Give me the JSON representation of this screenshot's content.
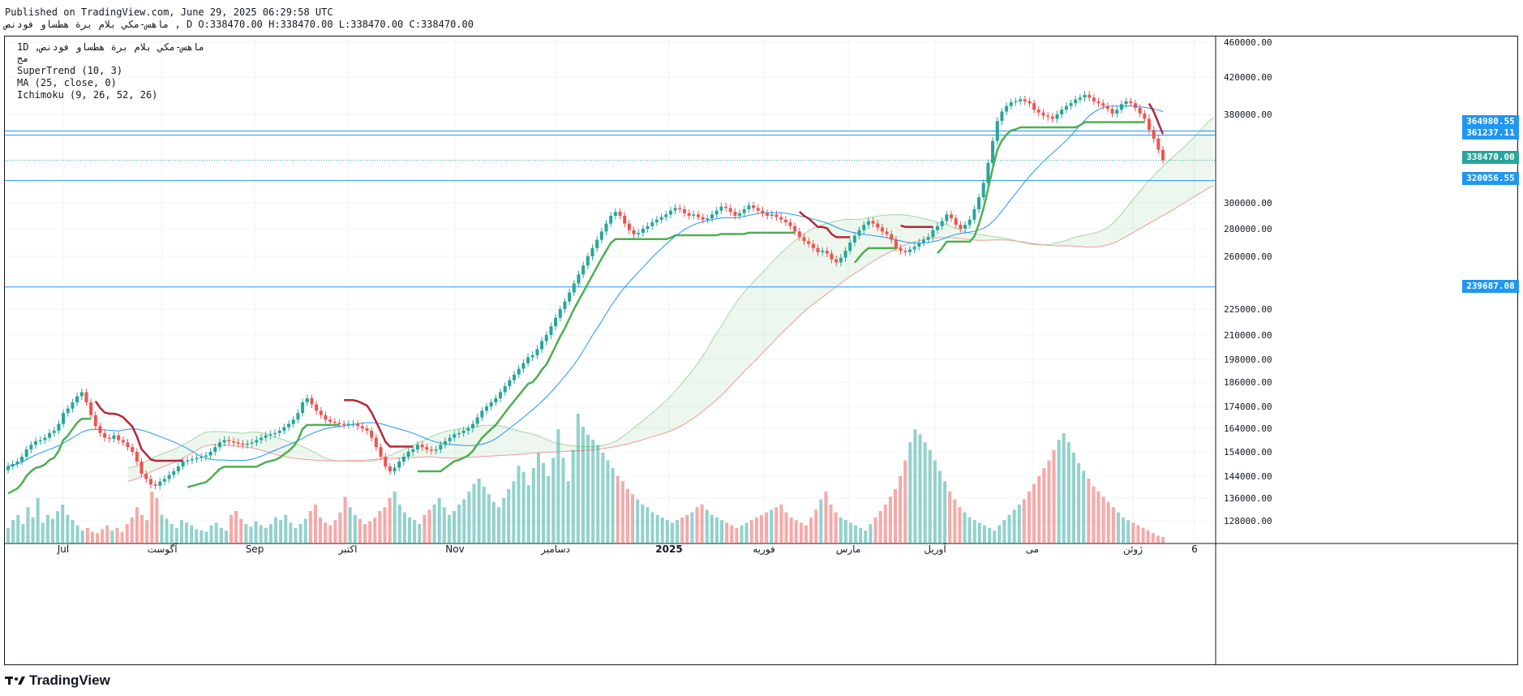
{
  "header": {
    "published": "Published on TradingView.com, June 29, 2025 06:29:58 UTC",
    "symbol_line": "ماهس-مكي بلام برة هطساو فودنص , D O:338470.00 H:338470.00 L:338470.00 C:338470.00"
  },
  "legend": {
    "symbol": "1D ,ماهس-مكي بلام برة هطساو فودنص",
    "exchange": "مج",
    "supertrend": "SuperTrend (10, 3)",
    "ma": "MA (25, close, 0)",
    "ichimoku": "Ichimoku (9, 26, 52, 26)"
  },
  "badges": [
    {
      "label": "364980.55",
      "color": "#2196f3"
    },
    {
      "label": "361237.11",
      "color": "#2196f3"
    },
    {
      "label": "338470.00",
      "color": "#26a69a"
    },
    {
      "label": "320056.55",
      "color": "#2196f3"
    },
    {
      "label": "239687.08",
      "color": "#2196f3"
    }
  ],
  "footer": {
    "brand": "TradingView"
  },
  "chart_data": {
    "type": "candlestick",
    "title": "ماهس-مكي بلام برة هطساو فودنص 1D",
    "y_ticks": [
      "460000.00",
      "420000.00",
      "380000.00",
      "300000.00",
      "280000.00",
      "260000.00",
      "225000.00",
      "210000.00",
      "198000.00",
      "186000.00",
      "174000.00",
      "164000.00",
      "154000.00",
      "144000.00",
      "136000.00",
      "128000.00"
    ],
    "x_ticks": [
      "Jul",
      "آگوست",
      "Sep",
      "اکتبر",
      "Nov",
      "دسامبر",
      "2025",
      "فوریه",
      "مارس",
      "آوریل",
      "می",
      "ژوئن",
      "6"
    ],
    "horizontal_levels": [
      364980.55,
      361237.11,
      338470.0,
      320056.55,
      239687.08
    ],
    "last_close": 338470.0,
    "ohlc_last": {
      "open": 338470.0,
      "high": 338470.0,
      "low": 338470.0,
      "close": 338470.0
    },
    "close_series": [
      148000,
      149000,
      150000,
      152000,
      155000,
      157000,
      158500,
      159000,
      160000,
      162000,
      163000,
      166000,
      171000,
      173000,
      176000,
      179000,
      181000,
      176000,
      170000,
      165000,
      162000,
      160000,
      159500,
      161000,
      159000,
      158000,
      156000,
      154000,
      150000,
      145000,
      143000,
      141000,
      140500,
      142000,
      143000,
      144500,
      146000,
      148000,
      150000,
      150500,
      151000,
      151500,
      152000,
      152500,
      154000,
      156000,
      158000,
      159000,
      158500,
      158000,
      157500,
      157000,
      157500,
      158000,
      159000,
      160000,
      161000,
      161500,
      162000,
      163000,
      164500,
      166000,
      168000,
      171000,
      176000,
      178000,
      175000,
      172000,
      170000,
      168000,
      167000,
      166500,
      166000,
      165500,
      166000,
      166000,
      165000,
      164000,
      163000,
      160000,
      156000,
      152000,
      148000,
      146000,
      147500,
      150000,
      152000,
      154000,
      155000,
      157000,
      156000,
      155000,
      154500,
      155000,
      157000,
      158500,
      160000,
      161500,
      162000,
      163000,
      164000,
      166000,
      169000,
      172000,
      174000,
      176000,
      178000,
      181000,
      184000,
      187000,
      190000,
      193000,
      196000,
      199000,
      200000,
      203000,
      207000,
      210000,
      215000,
      220000,
      225000,
      230000,
      236000,
      242000,
      248000,
      254000,
      260000,
      266000,
      272000,
      278000,
      284000,
      290000,
      293000,
      290000,
      284000,
      279000,
      276000,
      277000,
      280000,
      282000,
      285000,
      287000,
      289000,
      291000,
      294000,
      296000,
      295000,
      292000,
      290000,
      291000,
      289000,
      287000,
      288000,
      291000,
      294000,
      297000,
      296000,
      293000,
      290000,
      292000,
      295000,
      298000,
      296000,
      294000,
      292000,
      290000,
      291000,
      289000,
      287000,
      285000,
      282000,
      278000,
      274000,
      271000,
      269000,
      266000,
      263000,
      264000,
      262000,
      258000,
      256000,
      259000,
      264000,
      270000,
      275000,
      279000,
      283000,
      286000,
      284000,
      281000,
      278000,
      276000,
      272000,
      266000,
      264000,
      263000,
      265000,
      267000,
      270000,
      272000,
      274000,
      279000,
      282000,
      286000,
      291000,
      288000,
      283000,
      280000,
      283000,
      287000,
      295000,
      305000,
      318000,
      336000,
      356000,
      374000,
      383000,
      389000,
      393000,
      394000,
      396000,
      394000,
      392000,
      385000,
      382000,
      379000,
      378000,
      376000,
      380000,
      385000,
      389000,
      392000,
      396000,
      398000,
      401000,
      398000,
      394000,
      392000,
      389000,
      386000,
      381000,
      385000,
      391000,
      394000,
      392000,
      387000,
      381000,
      376000,
      366000,
      358000,
      348000,
      338470
    ],
    "volume_relative": [
      12,
      18,
      22,
      15,
      28,
      20,
      35,
      16,
      22,
      19,
      25,
      30,
      22,
      18,
      14,
      10,
      12,
      9,
      8,
      11,
      14,
      10,
      12,
      9,
      15,
      20,
      28,
      22,
      18,
      40,
      35,
      22,
      19,
      15,
      12,
      18,
      16,
      14,
      11,
      10,
      9,
      14,
      16,
      12,
      10,
      22,
      25,
      19,
      15,
      13,
      17,
      14,
      12,
      15,
      20,
      18,
      22,
      16,
      12,
      15,
      19,
      25,
      30,
      20,
      16,
      14,
      18,
      24,
      36,
      28,
      22,
      19,
      15,
      17,
      20,
      25,
      28,
      35,
      40,
      30,
      24,
      20,
      18,
      15,
      22,
      26,
      30,
      35,
      28,
      22,
      25,
      30,
      34,
      40,
      46,
      50,
      44,
      38,
      32,
      28,
      35,
      42,
      48,
      60,
      55,
      45,
      58,
      70,
      62,
      52,
      66,
      88,
      66,
      48,
      72,
      100,
      90,
      84,
      80,
      76,
      70,
      64,
      58,
      52,
      48,
      42,
      38,
      34,
      30,
      28,
      24,
      22,
      20,
      18,
      16,
      18,
      20,
      22,
      24,
      28,
      30,
      26,
      22,
      20,
      18,
      16,
      14,
      12,
      14,
      16,
      18,
      20,
      22,
      24,
      26,
      28,
      30,
      24,
      20,
      18,
      16,
      14,
      20,
      26,
      34,
      40,
      30,
      24,
      20,
      18,
      16,
      14,
      12,
      10,
      15,
      20,
      25,
      30,
      36,
      42,
      52,
      64,
      78,
      88,
      84,
      78,
      72,
      64,
      56,
      48,
      40,
      34,
      28,
      24,
      20,
      18,
      16,
      14,
      12,
      10,
      14,
      18,
      22,
      26,
      30,
      34,
      40,
      46,
      52,
      58,
      64,
      72,
      80,
      85,
      78,
      70,
      62,
      56,
      50,
      44,
      40,
      36,
      32,
      28,
      24,
      20,
      18,
      16,
      14,
      12,
      10,
      8,
      6,
      5
    ]
  }
}
